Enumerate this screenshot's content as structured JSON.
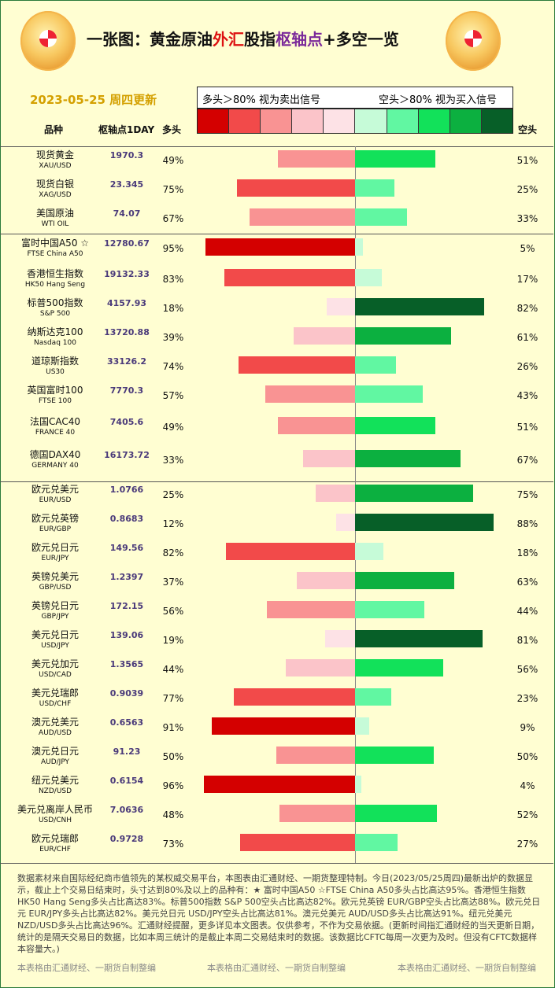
{
  "header": {
    "title_parts": [
      "一张图：黄金原油",
      "外汇",
      "股指",
      "枢轴点",
      "+多空一览"
    ],
    "date": "2023-05-25 周四更新",
    "legend_left": "多头＞80% 视为卖出信号",
    "legend_right": "空头＞80% 视为买入信号",
    "col_name": "品种",
    "col_pivot": "枢轴点1DAY",
    "col_long": "多头",
    "col_short": "空头"
  },
  "colors": {
    "scale": [
      "#d40000",
      "#f24a4a",
      "#f99393",
      "#fbc4c9",
      "#fde2e6",
      "#c6fbd8",
      "#61f7a2",
      "#12e15a",
      "#0cb040",
      "#075f28"
    ]
  },
  "chart_data": {
    "type": "bar",
    "xlim": [
      -100,
      100
    ],
    "series": [
      {
        "name": "多头"
      },
      {
        "name": "空头"
      }
    ],
    "rows": [
      {
        "name": "现货黄金",
        "code": "XAU/USD",
        "pivot": "1970.3",
        "long": 49,
        "short": 51
      },
      {
        "name": "现货白银",
        "code": "XAG/USD",
        "pivot": "23.345",
        "long": 75,
        "short": 25
      },
      {
        "name": "美国原油",
        "code": "WTI OIL",
        "pivot": "74.07",
        "long": 67,
        "short": 33
      },
      {
        "name": "富时中国A50 ☆",
        "code": "FTSE China A50",
        "pivot": "12780.67",
        "long": 95,
        "short": 5
      },
      {
        "name": "香港恒生指数",
        "code": "HK50 Hang Seng",
        "pivot": "19132.33",
        "long": 83,
        "short": 17
      },
      {
        "name": "标普500指数",
        "code": "S&P 500",
        "pivot": "4157.93",
        "long": 18,
        "short": 82
      },
      {
        "name": "纳斯达克100",
        "code": "Nasdaq 100",
        "pivot": "13720.88",
        "long": 39,
        "short": 61
      },
      {
        "name": "道琼斯指数",
        "code": "US30",
        "pivot": "33126.2",
        "long": 74,
        "short": 26
      },
      {
        "name": "英国富时100",
        "code": "FTSE 100",
        "pivot": "7770.3",
        "long": 57,
        "short": 43
      },
      {
        "name": "法国CAC40",
        "code": "FRANCE 40",
        "pivot": "7405.6",
        "long": 49,
        "short": 51
      },
      {
        "name": "德国DAX40",
        "code": "GERMANY 40",
        "pivot": "16173.72",
        "long": 33,
        "short": 67
      },
      {
        "name": "欧元兑美元",
        "code": "EUR/USD",
        "pivot": "1.0766",
        "long": 25,
        "short": 75
      },
      {
        "name": "欧元兑英镑",
        "code": "EUR/GBP",
        "pivot": "0.8683",
        "long": 12,
        "short": 88
      },
      {
        "name": "欧元兑日元",
        "code": "EUR/JPY",
        "pivot": "149.56",
        "long": 82,
        "short": 18
      },
      {
        "name": "英镑兑美元",
        "code": "GBP/USD",
        "pivot": "1.2397",
        "long": 37,
        "short": 63
      },
      {
        "name": "英镑兑日元",
        "code": "GBP/JPY",
        "pivot": "172.15",
        "long": 56,
        "short": 44
      },
      {
        "name": "美元兑日元",
        "code": "USD/JPY",
        "pivot": "139.06",
        "long": 19,
        "short": 81
      },
      {
        "name": "美元兑加元",
        "code": "USD/CAD",
        "pivot": "1.3565",
        "long": 44,
        "short": 56
      },
      {
        "name": "美元兑瑞郎",
        "code": "USD/CHF",
        "pivot": "0.9039",
        "long": 77,
        "short": 23
      },
      {
        "name": "澳元兑美元",
        "code": "AUD/USD",
        "pivot": "0.6563",
        "long": 91,
        "short": 9
      },
      {
        "name": "澳元兑日元",
        "code": "AUD/JPY",
        "pivot": "91.23",
        "long": 50,
        "short": 50
      },
      {
        "name": "纽元兑美元",
        "code": "NZD/USD",
        "pivot": "0.6154",
        "long": 96,
        "short": 4
      },
      {
        "name": "美元兑离岸人民币",
        "code": "USD/CNH",
        "pivot": "7.0636",
        "long": 48,
        "short": 52
      },
      {
        "name": "欧元兑瑞郎",
        "code": "EUR/CHF",
        "pivot": "0.9728",
        "long": 73,
        "short": 27
      }
    ]
  },
  "footer": {
    "text": "数据素材来自国际经纪商市值领先的某权威交易平台，本图表由汇通财经、一期货整理特制。今日(2023/05/25周四)最新出炉的数据显示，截止上个交易日结束时，头寸达到80%及以上的品种有：★ 富时中国A50 ☆FTSE China A50多头占比高达95%。香港恒生指数 HK50 Hang Seng多头占比高达83%。标普500指数 S&P 500空头占比高达82%。欧元兑英镑 EUR/GBP空头占比高达88%。欧元兑日元 EUR/JPY多头占比高达82%。美元兑日元 USD/JPY空头占比高达81%。澳元兑美元 AUD/USD多头占比高达91%。纽元兑美元 NZD/USD多头占比高达96%。汇通财经提醒，更多详见本文图表。仅供参考，不作为交易依据。(更新时间指汇通财经的当天更新日期，统计的是隔天交易日的数据，比如本周三统计的是截止本周二交易结束时的数据。该数据比CFTC每周一次更为及时。但没有CFTC数据样本容量大。)",
    "credit": "本表格由汇通财经、一期货自制整编"
  }
}
